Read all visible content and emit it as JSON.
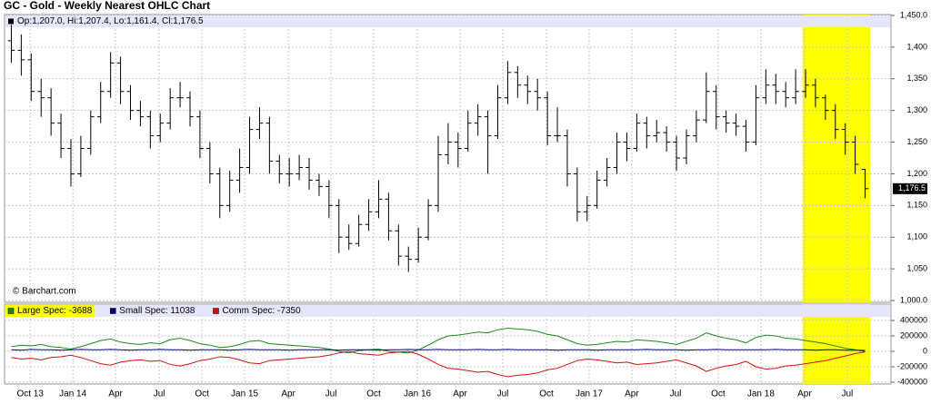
{
  "chart_data": [
    {
      "type": "ohlc",
      "title": "GC - Gold - Weekly Nearest OHLC Chart",
      "info": "Op:1,207.0, Hi:1,207.4, Lo:1,161.4, Cl:1,176.5",
      "credit": "© Barchart.com",
      "color": "#000000",
      "open": [
        1410,
        1395,
        1380,
        1330,
        1320,
        1280,
        1240,
        1200,
        1240,
        1290,
        1330,
        1375,
        1330,
        1300,
        1290,
        1260,
        1280,
        1320,
        1320,
        1290,
        1240,
        1200,
        1150,
        1190,
        1210,
        1270,
        1280,
        1220,
        1200,
        1200,
        1210,
        1190,
        1180,
        1150,
        1100,
        1090,
        1120,
        1140,
        1160,
        1110,
        1070,
        1065,
        1100,
        1150,
        1230,
        1250,
        1240,
        1280,
        1290,
        1260,
        1320,
        1360,
        1340,
        1330,
        1320,
        1260,
        1260,
        1200,
        1140,
        1150,
        1190,
        1210,
        1250,
        1240,
        1280,
        1260,
        1265,
        1250,
        1225,
        1260,
        1285,
        1330,
        1290,
        1280,
        1275,
        1250,
        1320,
        1340,
        1330,
        1320,
        1330,
        1340,
        1320,
        1300,
        1270,
        1250,
        1207.0
      ],
      "high": [
        1435,
        1420,
        1390,
        1350,
        1335,
        1295,
        1255,
        1260,
        1300,
        1345,
        1392,
        1385,
        1340,
        1315,
        1300,
        1295,
        1335,
        1345,
        1330,
        1300,
        1250,
        1210,
        1205,
        1240,
        1290,
        1305,
        1290,
        1230,
        1225,
        1230,
        1225,
        1200,
        1190,
        1160,
        1120,
        1135,
        1160,
        1190,
        1170,
        1120,
        1085,
        1115,
        1160,
        1260,
        1280,
        1265,
        1300,
        1310,
        1300,
        1340,
        1378,
        1370,
        1355,
        1350,
        1330,
        1305,
        1270,
        1210,
        1165,
        1205,
        1225,
        1265,
        1265,
        1295,
        1290,
        1285,
        1275,
        1260,
        1270,
        1300,
        1360,
        1340,
        1300,
        1295,
        1285,
        1340,
        1365,
        1358,
        1345,
        1365,
        1365,
        1350,
        1325,
        1310,
        1280,
        1260,
        1207.4
      ],
      "low": [
        1375,
        1355,
        1315,
        1290,
        1260,
        1225,
        1180,
        1195,
        1230,
        1280,
        1320,
        1310,
        1285,
        1275,
        1240,
        1250,
        1270,
        1305,
        1275,
        1225,
        1185,
        1130,
        1140,
        1170,
        1200,
        1255,
        1200,
        1185,
        1180,
        1190,
        1175,
        1165,
        1130,
        1075,
        1080,
        1085,
        1110,
        1130,
        1095,
        1055,
        1045,
        1060,
        1095,
        1140,
        1215,
        1210,
        1235,
        1260,
        1200,
        1255,
        1310,
        1320,
        1310,
        1300,
        1245,
        1250,
        1180,
        1125,
        1125,
        1145,
        1180,
        1200,
        1220,
        1235,
        1240,
        1250,
        1235,
        1205,
        1215,
        1250,
        1280,
        1270,
        1265,
        1260,
        1235,
        1245,
        1310,
        1310,
        1305,
        1310,
        1320,
        1305,
        1285,
        1255,
        1230,
        1200,
        1161.4
      ],
      "close": [
        1395,
        1380,
        1330,
        1320,
        1280,
        1240,
        1200,
        1240,
        1290,
        1330,
        1375,
        1330,
        1300,
        1290,
        1260,
        1280,
        1320,
        1320,
        1290,
        1240,
        1200,
        1150,
        1190,
        1210,
        1270,
        1280,
        1220,
        1200,
        1200,
        1210,
        1190,
        1180,
        1150,
        1100,
        1090,
        1120,
        1140,
        1160,
        1110,
        1070,
        1065,
        1100,
        1150,
        1230,
        1250,
        1240,
        1280,
        1290,
        1260,
        1320,
        1360,
        1340,
        1330,
        1320,
        1260,
        1260,
        1200,
        1140,
        1150,
        1190,
        1210,
        1250,
        1240,
        1280,
        1260,
        1265,
        1250,
        1225,
        1260,
        1285,
        1330,
        1290,
        1280,
        1275,
        1250,
        1320,
        1340,
        1330,
        1320,
        1330,
        1340,
        1320,
        1300,
        1270,
        1250,
        1215,
        1176.5
      ],
      "last": {
        "value": 1176.5,
        "label": "1,176.5"
      },
      "xlim": [
        0,
        87
      ],
      "ylim": [
        1000,
        1450
      ],
      "yticks": [
        {
          "value": 1000,
          "label": "1,000.0"
        },
        {
          "value": 1050,
          "label": "1,050"
        },
        {
          "value": 1100,
          "label": "1,100"
        },
        {
          "value": 1150,
          "label": "1,150"
        },
        {
          "value": 1200,
          "label": "1,200"
        },
        {
          "value": 1250,
          "label": "1,250"
        },
        {
          "value": 1300,
          "label": "1,300"
        },
        {
          "value": 1350,
          "label": "1,350"
        },
        {
          "value": 1400,
          "label": "1,400"
        },
        {
          "value": 1450,
          "label": "1,450.0"
        }
      ],
      "grid": true,
      "highlight": {
        "range": [
          80.2,
          87
        ],
        "color": "#ffff00"
      }
    },
    {
      "type": "line",
      "xlim": [
        0,
        87
      ],
      "ylim": [
        -400000,
        400000
      ],
      "yticks": [
        400000,
        200000,
        0,
        -200000,
        -400000
      ],
      "grid": true,
      "highlight": {
        "range": [
          80.2,
          87
        ],
        "color": "#ffff00"
      },
      "xticks": [
        {
          "value": 2.4,
          "label": "Oct 13"
        },
        {
          "value": 6.7,
          "label": "Jan 14"
        },
        {
          "value": 11.0,
          "label": "Apr"
        },
        {
          "value": 15.4,
          "label": "Jul"
        },
        {
          "value": 19.7,
          "label": "Oct"
        },
        {
          "value": 24.0,
          "label": "Jan 15"
        },
        {
          "value": 28.4,
          "label": "Apr"
        },
        {
          "value": 32.7,
          "label": "Jul"
        },
        {
          "value": 37.0,
          "label": "Oct"
        },
        {
          "value": 41.4,
          "label": "Jan 16"
        },
        {
          "value": 45.7,
          "label": "Apr"
        },
        {
          "value": 50.0,
          "label": "Jul"
        },
        {
          "value": 54.4,
          "label": "Oct"
        },
        {
          "value": 58.7,
          "label": "Jan 17"
        },
        {
          "value": 63.0,
          "label": "Apr"
        },
        {
          "value": 67.4,
          "label": "Jul"
        },
        {
          "value": 71.7,
          "label": "Oct"
        },
        {
          "value": 76.0,
          "label": "Jan 18"
        },
        {
          "value": 80.4,
          "label": "Apr"
        },
        {
          "value": 84.7,
          "label": "Jul"
        }
      ],
      "series": [
        {
          "name": "Large Spec: -3688",
          "color": "#1a8a1a",
          "values": [
            60000,
            80000,
            70000,
            90000,
            60000,
            50000,
            30000,
            60000,
            100000,
            140000,
            160000,
            120000,
            100000,
            90000,
            110000,
            100000,
            150000,
            170000,
            140000,
            100000,
            80000,
            50000,
            60000,
            90000,
            130000,
            140000,
            100000,
            90000,
            80000,
            70000,
            60000,
            50000,
            30000,
            0,
            -20000,
            10000,
            20000,
            30000,
            0,
            -10000,
            -20000,
            20000,
            80000,
            150000,
            200000,
            210000,
            230000,
            250000,
            240000,
            280000,
            300000,
            290000,
            280000,
            260000,
            220000,
            200000,
            150000,
            100000,
            80000,
            90000,
            110000,
            130000,
            120000,
            150000,
            140000,
            130000,
            110000,
            90000,
            130000,
            170000,
            240000,
            200000,
            170000,
            150000,
            110000,
            180000,
            210000,
            200000,
            170000,
            160000,
            140000,
            120000,
            100000,
            70000,
            40000,
            20000,
            -3688
          ]
        },
        {
          "name": "Small Spec: 11038",
          "color": "#00007a",
          "values": [
            20000,
            15000,
            25000,
            20000,
            20000,
            15000,
            20000,
            25000,
            20000,
            20000,
            25000,
            20000,
            15000,
            20000,
            20000,
            25000,
            20000,
            20000,
            15000,
            20000,
            20000,
            20000,
            15000,
            20000,
            25000,
            20000,
            20000,
            20000,
            15000,
            20000,
            20000,
            20000,
            20000,
            15000,
            20000,
            20000,
            20000,
            15000,
            20000,
            20000,
            25000,
            20000,
            20000,
            25000,
            20000,
            20000,
            20000,
            25000,
            20000,
            20000,
            25000,
            20000,
            20000,
            20000,
            20000,
            15000,
            20000,
            20000,
            20000,
            15000,
            20000,
            20000,
            20000,
            20000,
            25000,
            20000,
            20000,
            20000,
            15000,
            20000,
            20000,
            25000,
            20000,
            20000,
            20000,
            20000,
            20000,
            25000,
            20000,
            20000,
            20000,
            15000,
            20000,
            20000,
            15000,
            15000,
            11038
          ]
        },
        {
          "name": "Comm Spec: -7350",
          "color": "#cc1010",
          "values": [
            -80000,
            -100000,
            -90000,
            -110000,
            -80000,
            -70000,
            -50000,
            -80000,
            -120000,
            -160000,
            -180000,
            -140000,
            -120000,
            -110000,
            -130000,
            -120000,
            -170000,
            -190000,
            -160000,
            -120000,
            -100000,
            -70000,
            -80000,
            -110000,
            -150000,
            -160000,
            -120000,
            -110000,
            -100000,
            -90000,
            -80000,
            -70000,
            -50000,
            -20000,
            0,
            -30000,
            -40000,
            -50000,
            -20000,
            -10000,
            0,
            -40000,
            -100000,
            -170000,
            -220000,
            -230000,
            -250000,
            -270000,
            -260000,
            -300000,
            -330000,
            -310000,
            -300000,
            -280000,
            -240000,
            -220000,
            -170000,
            -120000,
            -100000,
            -110000,
            -130000,
            -150000,
            -140000,
            -170000,
            -160000,
            -150000,
            -130000,
            -110000,
            -150000,
            -190000,
            -260000,
            -220000,
            -190000,
            -170000,
            -130000,
            -200000,
            -230000,
            -220000,
            -190000,
            -180000,
            -160000,
            -140000,
            -120000,
            -90000,
            -60000,
            -30000,
            -7350
          ]
        }
      ]
    }
  ]
}
